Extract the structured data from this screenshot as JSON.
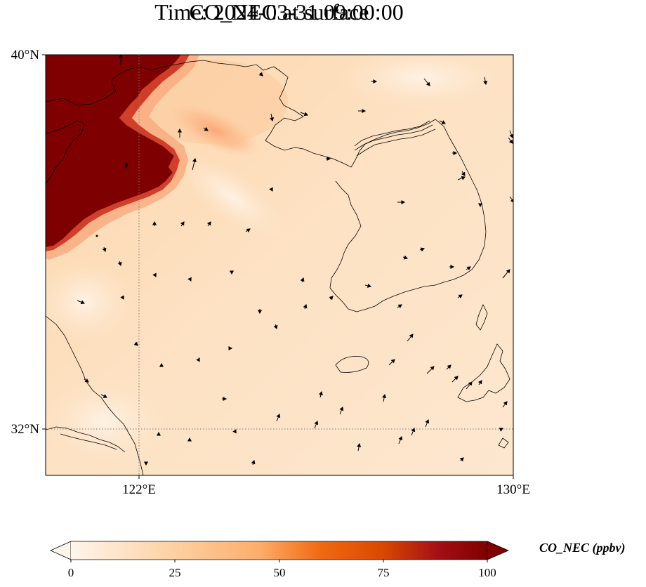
{
  "title": {
    "line1": "CO_NEC at surface",
    "line2": "Time: 2024-03-31 09:00:00"
  },
  "map": {
    "lat_range": [
      31,
      40
    ],
    "lon_range": [
      120,
      130
    ],
    "lat_ticks": [
      {
        "value": 40,
        "label": "40°N"
      },
      {
        "value": 32,
        "label": "32°N"
      }
    ],
    "lon_ticks": [
      {
        "value": 122,
        "label": "122°E"
      },
      {
        "value": 130,
        "label": "130°E"
      }
    ],
    "gridlines": {
      "lat": [
        32
      ],
      "lon": [
        122
      ]
    }
  },
  "colorbar": {
    "label": "CO_NEC (ppbv)",
    "range": [
      0,
      100
    ],
    "ticks": [
      0,
      25,
      50,
      75,
      100
    ],
    "colors": [
      "#fff5eb",
      "#fdd0a2",
      "#fdae6b",
      "#f16913",
      "#d94801",
      "#a50f15",
      "#7f0000"
    ],
    "extend": "both"
  }
}
